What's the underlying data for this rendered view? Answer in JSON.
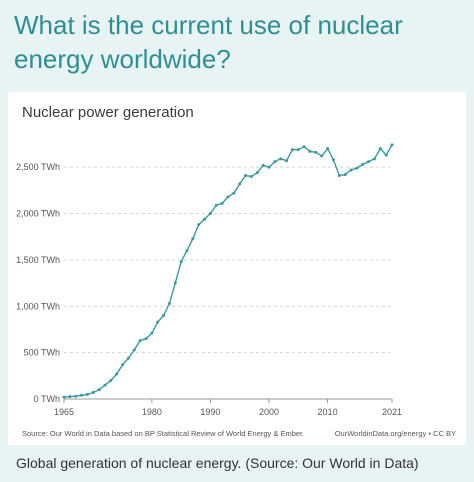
{
  "headline": "What is the current use of nuclear energy worldwide?",
  "caption": "Global generation of nuclear energy. (Source: Our World in Data)",
  "source_left": "Source: Our World in Data based on BP Statistical Review of World Energy & Ember",
  "source_right": "OurWorldinData.org/energy • CC BY",
  "colors": {
    "line": "#3a9a9d",
    "headline": "#2e8f93",
    "background": "#e8f3f4"
  },
  "chart_data": {
    "type": "line",
    "title": "Nuclear power generation",
    "xlabel": "",
    "ylabel": "",
    "xlim": [
      1965,
      2021
    ],
    "ylim": [
      0,
      2750
    ],
    "x_ticks": [
      "1965",
      "1980",
      "1990",
      "2000",
      "2010",
      "2021"
    ],
    "y_ticks": [
      "0 TWh",
      "500 TWh",
      "1,000 TWh",
      "1,500 TWh",
      "2,000 TWh",
      "2,500 TWh"
    ],
    "y_tick_values": [
      0,
      500,
      1000,
      1500,
      2000,
      2500
    ],
    "grid": "horizontal dashed",
    "series": [
      {
        "name": "",
        "x": [
          1965,
          1966,
          1967,
          1968,
          1969,
          1970,
          1971,
          1972,
          1973,
          1974,
          1975,
          1976,
          1977,
          1978,
          1979,
          1980,
          1981,
          1982,
          1983,
          1984,
          1985,
          1986,
          1987,
          1988,
          1989,
          1990,
          1991,
          1992,
          1993,
          1994,
          1995,
          1996,
          1997,
          1998,
          1999,
          2000,
          2001,
          2002,
          2003,
          2004,
          2005,
          2006,
          2007,
          2008,
          2009,
          2010,
          2011,
          2012,
          2013,
          2014,
          2015,
          2016,
          2017,
          2018,
          2019,
          2020,
          2021
        ],
        "values": [
          20,
          25,
          30,
          40,
          50,
          70,
          100,
          150,
          200,
          270,
          370,
          440,
          530,
          630,
          650,
          710,
          830,
          900,
          1030,
          1250,
          1480,
          1600,
          1730,
          1880,
          1940,
          2000,
          2090,
          2110,
          2180,
          2220,
          2320,
          2410,
          2400,
          2440,
          2520,
          2500,
          2560,
          2590,
          2570,
          2690,
          2690,
          2720,
          2670,
          2660,
          2620,
          2700,
          2580,
          2410,
          2420,
          2470,
          2490,
          2530,
          2560,
          2590,
          2700,
          2630,
          2740
        ]
      }
    ]
  }
}
